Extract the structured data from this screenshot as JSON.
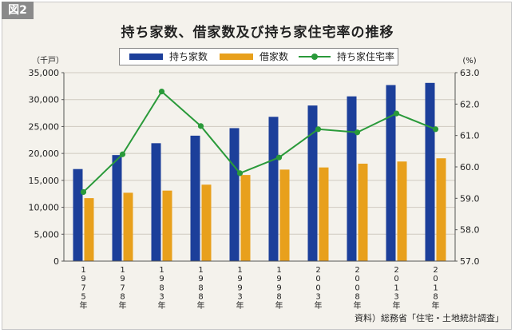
{
  "figure_label": "図2",
  "source_note": "資料）総務省「住宅・土地統計調査」",
  "legend": [
    {
      "label": "持ち家数",
      "color": "#1c3f9a"
    },
    {
      "label": "借家数",
      "color": "#e8a01c"
    },
    {
      "label": "持ち家住宅率",
      "color": "#2a9a3a"
    }
  ],
  "chart_data": {
    "type": "bar",
    "title": "持ち家数、借家数及び持ち家住宅率の推移",
    "left_unit": "（千戸）",
    "right_unit": "(%)",
    "categories": [
      "1975年",
      "1978年",
      "1983年",
      "1988年",
      "1993年",
      "1998年",
      "2003年",
      "2008年",
      "2013年",
      "2018年"
    ],
    "series": [
      {
        "name": "持ち家数",
        "type": "bar",
        "axis": "left",
        "color": "#1c3f9a",
        "values": [
          17100,
          19700,
          21900,
          23300,
          24700,
          26800,
          28900,
          30600,
          32700,
          33100
        ]
      },
      {
        "name": "借家数",
        "type": "bar",
        "axis": "left",
        "color": "#e8a01c",
        "values": [
          11700,
          12700,
          13100,
          14200,
          16000,
          17000,
          17400,
          18100,
          18500,
          19100
        ]
      },
      {
        "name": "持ち家住宅率",
        "type": "line",
        "axis": "right",
        "color": "#2a9a3a",
        "values": [
          59.2,
          60.4,
          62.4,
          61.3,
          59.8,
          60.3,
          61.2,
          61.1,
          61.7,
          61.2
        ]
      }
    ],
    "ylim_left": [
      0,
      35000
    ],
    "yticks_left": [
      "35,000",
      "30,000",
      "25,000",
      "20,000",
      "15,000",
      "10,000",
      "5,000",
      "0"
    ],
    "ylim_right": [
      57.0,
      63.0
    ],
    "yticks_right": [
      "63.0",
      "62.0",
      "61.0",
      "60.0",
      "59.0",
      "58.0",
      "57.0"
    ],
    "grid": true
  }
}
